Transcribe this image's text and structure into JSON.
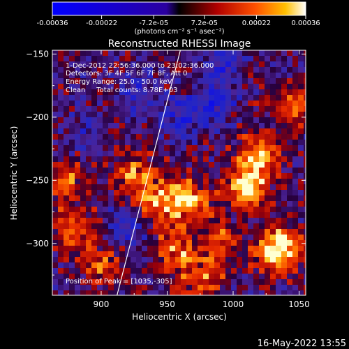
{
  "chart_data": {
    "type": "heatmap",
    "title": "Reconstructed RHESSI Image",
    "xlabel": "Heliocentric X (arcsec)",
    "ylabel": "Heliocentric Y (arcsec)",
    "xlim": [
      863,
      1055
    ],
    "ylim": [
      -341,
      -147
    ],
    "x_ticks": [
      900,
      950,
      1000,
      1050
    ],
    "y_ticks": [
      -150,
      -200,
      -250,
      -300
    ],
    "colorbar": {
      "ticks": [
        "-0.00036",
        "-0.00022",
        "-7.2e-05",
        "7.2e-05",
        "0.00022",
        "0.00036"
      ],
      "unit_label": "(photons cm⁻² s⁻¹ asec⁻²)",
      "range": [
        -0.00036,
        0.00036
      ]
    },
    "info_lines": [
      "1-Dec-2012 22:56:36.000 to 23:02:36.000",
      "Detectors: 3F 4F 5F 6F 7F 8F, Att 0",
      "Energy Range: 25.0 - 50.0 keV",
      "Clean     Total counts: 8.78E+03"
    ],
    "peak_label": "Position of Peak = [1035,-305]",
    "peak_position": [
      1035,
      -305
    ],
    "limb_line": [
      [
        912,
        -341
      ],
      [
        960,
        -147
      ]
    ],
    "hot_regions": [
      {
        "x": 1035,
        "y": -305,
        "level": 1.0
      },
      {
        "x": 1010,
        "y": -255,
        "level": 0.8
      },
      {
        "x": 1020,
        "y": -230,
        "level": 0.7
      },
      {
        "x": 965,
        "y": -265,
        "level": 0.75
      },
      {
        "x": 940,
        "y": -265,
        "level": 0.55
      },
      {
        "x": 880,
        "y": -290,
        "level": 0.6
      },
      {
        "x": 875,
        "y": -250,
        "level": 0.45
      },
      {
        "x": 925,
        "y": -245,
        "level": 0.5
      },
      {
        "x": 900,
        "y": -320,
        "level": 0.45
      },
      {
        "x": 975,
        "y": -330,
        "level": 0.55
      },
      {
        "x": 1045,
        "y": -190,
        "level": 0.5
      },
      {
        "x": 990,
        "y": -300,
        "level": 0.5
      },
      {
        "x": 955,
        "y": -305,
        "level": 0.55
      }
    ],
    "cold_regions": [
      {
        "x": 920,
        "y": -285,
        "level": 0.5
      },
      {
        "x": 985,
        "y": -190,
        "level": 0.55
      },
      {
        "x": 990,
        "y": -160,
        "level": 0.5
      },
      {
        "x": 960,
        "y": -200,
        "level": 0.4
      },
      {
        "x": 890,
        "y": -210,
        "level": 0.35
      },
      {
        "x": 930,
        "y": -180,
        "level": 0.4
      }
    ]
  },
  "footer": {
    "timestamp": "16-May-2022 13:55"
  }
}
